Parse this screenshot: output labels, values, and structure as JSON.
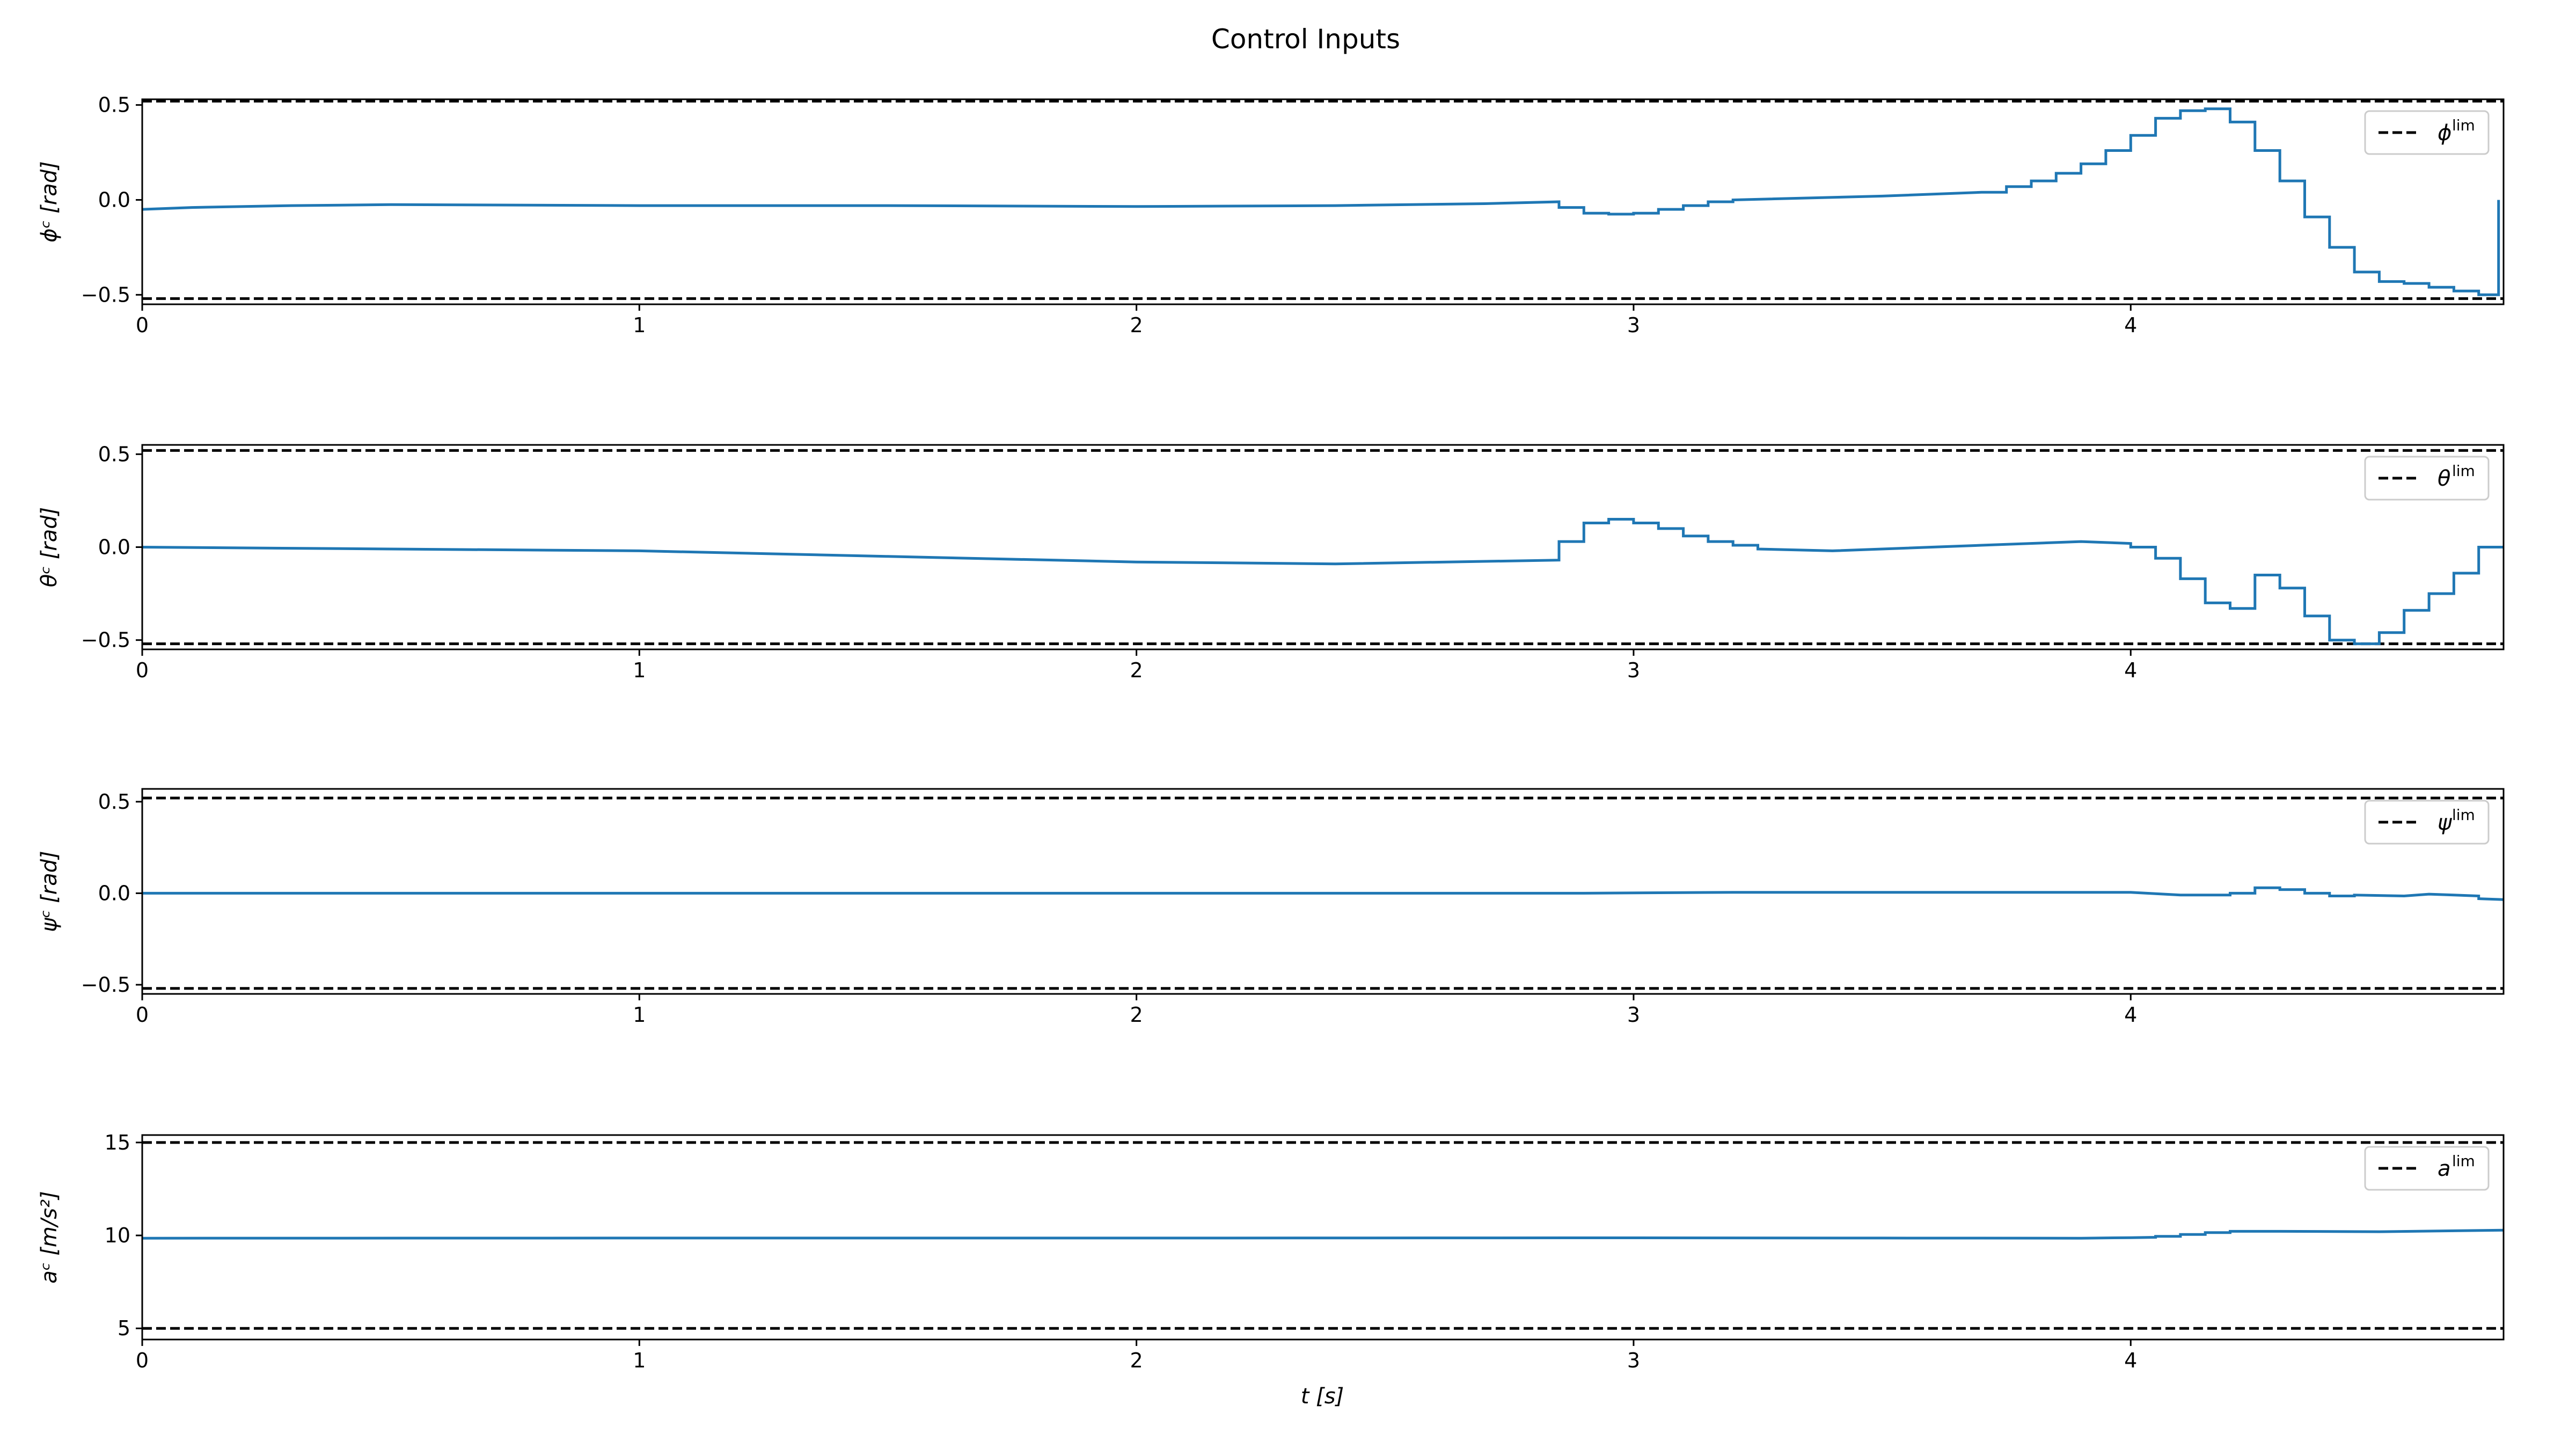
{
  "figure": {
    "title": "Control Inputs",
    "xlabel": "t [s]"
  },
  "colors": {
    "series": "#1f77b4",
    "limit": "#000000",
    "frame": "#000000"
  },
  "chart_data": [
    {
      "type": "line",
      "ylabel": "ϕᶜ [rad]",
      "xlim": [
        0,
        4.75
      ],
      "ylim": [
        -0.55,
        0.53
      ],
      "xticks": [
        "0",
        "1",
        "2",
        "3",
        "4"
      ],
      "yticks": [
        "0.5",
        "0.0",
        "−0.5"
      ],
      "ytick_values": [
        0.5,
        0.0,
        -0.5
      ],
      "limits": [
        0.52,
        -0.52
      ],
      "legend": "ϕ",
      "legend_sup": "lim",
      "legend_placement": "top-right",
      "series": {
        "x": [
          0,
          0.1,
          0.3,
          0.5,
          1.0,
          1.5,
          2.0,
          2.4,
          2.7,
          2.85,
          2.85,
          2.9,
          2.9,
          2.95,
          2.95,
          3.0,
          3.0,
          3.05,
          3.05,
          3.1,
          3.1,
          3.15,
          3.15,
          3.2,
          3.2,
          3.5,
          3.7,
          3.75,
          3.75,
          3.8,
          3.8,
          3.85,
          3.85,
          3.9,
          3.9,
          3.95,
          3.95,
          4.0,
          4.0,
          4.05,
          4.05,
          4.1,
          4.1,
          4.15,
          4.15,
          4.2,
          4.2,
          4.25,
          4.25,
          4.3,
          4.3,
          4.35,
          4.35,
          4.4,
          4.4,
          4.45,
          4.45,
          4.5,
          4.5,
          4.55,
          4.55,
          4.6,
          4.6,
          4.65,
          4.65,
          4.7,
          4.7,
          4.74,
          4.74
        ],
        "y": [
          -0.05,
          -0.04,
          -0.03,
          -0.025,
          -0.03,
          -0.03,
          -0.035,
          -0.03,
          -0.02,
          -0.01,
          -0.04,
          -0.04,
          -0.07,
          -0.07,
          -0.075,
          -0.075,
          -0.07,
          -0.07,
          -0.05,
          -0.05,
          -0.03,
          -0.03,
          -0.01,
          -0.01,
          0.0,
          0.02,
          0.04,
          0.04,
          0.07,
          0.07,
          0.1,
          0.1,
          0.14,
          0.14,
          0.19,
          0.19,
          0.26,
          0.26,
          0.34,
          0.34,
          0.43,
          0.43,
          0.47,
          0.47,
          0.48,
          0.48,
          0.41,
          0.41,
          0.26,
          0.26,
          0.1,
          0.1,
          -0.09,
          -0.09,
          -0.25,
          -0.25,
          -0.38,
          -0.38,
          -0.43,
          -0.43,
          -0.44,
          -0.44,
          -0.46,
          -0.46,
          -0.48,
          -0.48,
          -0.5,
          -0.5,
          0.0
        ]
      }
    },
    {
      "type": "line",
      "ylabel": "θᶜ [rad]",
      "xlim": [
        0,
        4.75
      ],
      "ylim": [
        -0.55,
        0.55
      ],
      "xticks": [
        "0",
        "1",
        "2",
        "3",
        "4"
      ],
      "yticks": [
        "0.5",
        "0.0",
        "−0.5"
      ],
      "ytick_values": [
        0.5,
        0.0,
        -0.5
      ],
      "limits": [
        0.52,
        -0.52
      ],
      "legend": "θ",
      "legend_sup": "lim",
      "legend_placement": "top-right",
      "series": {
        "x": [
          0,
          0.5,
          1.0,
          1.5,
          2.0,
          2.4,
          2.85,
          2.85,
          2.9,
          2.9,
          2.95,
          2.95,
          3.0,
          3.0,
          3.05,
          3.05,
          3.1,
          3.1,
          3.15,
          3.15,
          3.2,
          3.2,
          3.25,
          3.25,
          3.4,
          3.7,
          3.9,
          4.0,
          4.0,
          4.05,
          4.05,
          4.1,
          4.1,
          4.15,
          4.15,
          4.2,
          4.2,
          4.25,
          4.25,
          4.3,
          4.3,
          4.35,
          4.35,
          4.4,
          4.4,
          4.45,
          4.45,
          4.5,
          4.5,
          4.55,
          4.55,
          4.6,
          4.6,
          4.65,
          4.65,
          4.7,
          4.7,
          4.75
        ],
        "y": [
          0.0,
          -0.01,
          -0.02,
          -0.05,
          -0.08,
          -0.09,
          -0.07,
          0.03,
          0.03,
          0.13,
          0.13,
          0.15,
          0.15,
          0.13,
          0.13,
          0.1,
          0.1,
          0.06,
          0.06,
          0.03,
          0.03,
          0.01,
          0.01,
          -0.01,
          -0.02,
          0.01,
          0.03,
          0.02,
          0.0,
          0.0,
          -0.06,
          -0.06,
          -0.17,
          -0.17,
          -0.3,
          -0.3,
          -0.33,
          -0.33,
          -0.15,
          -0.15,
          -0.22,
          -0.22,
          -0.37,
          -0.37,
          -0.5,
          -0.5,
          -0.52,
          -0.52,
          -0.46,
          -0.46,
          -0.34,
          -0.34,
          -0.25,
          -0.25,
          -0.14,
          -0.14,
          0.0,
          0.0
        ]
      }
    },
    {
      "type": "line",
      "ylabel": "ψᶜ [rad]",
      "xlim": [
        0,
        4.75
      ],
      "ylim": [
        -0.55,
        0.57
      ],
      "xticks": [
        "0",
        "1",
        "2",
        "3",
        "4"
      ],
      "yticks": [
        "0.5",
        "0.0",
        "−0.5"
      ],
      "ytick_values": [
        0.5,
        0.0,
        -0.5
      ],
      "limits": [
        0.52,
        -0.52
      ],
      "legend": "ψ",
      "legend_sup": "lim",
      "legend_placement": "top-right",
      "series": {
        "x": [
          0,
          1.0,
          2.0,
          2.9,
          3.2,
          3.5,
          4.0,
          4.1,
          4.2,
          4.2,
          4.25,
          4.25,
          4.3,
          4.3,
          4.35,
          4.35,
          4.4,
          4.4,
          4.45,
          4.45,
          4.55,
          4.6,
          4.65,
          4.7,
          4.7,
          4.75
        ],
        "y": [
          0.0,
          0.0,
          0.0,
          0.0,
          0.005,
          0.005,
          0.005,
          -0.01,
          -0.01,
          0.0,
          0.0,
          0.03,
          0.03,
          0.02,
          0.02,
          0.0,
          0.0,
          -0.015,
          -0.015,
          -0.01,
          -0.015,
          -0.005,
          -0.01,
          -0.015,
          -0.03,
          -0.035
        ]
      }
    },
    {
      "type": "line",
      "ylabel": "aᶜ [m/s²]",
      "xlim": [
        0,
        4.75
      ],
      "ylim": [
        4.4,
        15.4
      ],
      "xticks": [
        "0",
        "1",
        "2",
        "3",
        "4"
      ],
      "yticks": [
        "15",
        "10",
        "5"
      ],
      "ytick_values": [
        15,
        10,
        5
      ],
      "limits": [
        15,
        5
      ],
      "legend": "a",
      "legend_sup": "lim",
      "legend_placement": "top-right",
      "series": {
        "x": [
          0,
          1.0,
          2.0,
          3.0,
          3.5,
          3.9,
          4.0,
          4.05,
          4.05,
          4.1,
          4.1,
          4.15,
          4.15,
          4.2,
          4.2,
          4.3,
          4.5,
          4.75
        ],
        "y": [
          9.85,
          9.86,
          9.86,
          9.87,
          9.86,
          9.85,
          9.88,
          9.9,
          9.95,
          9.95,
          10.05,
          10.05,
          10.15,
          10.15,
          10.22,
          10.22,
          10.2,
          10.28
        ]
      }
    }
  ]
}
